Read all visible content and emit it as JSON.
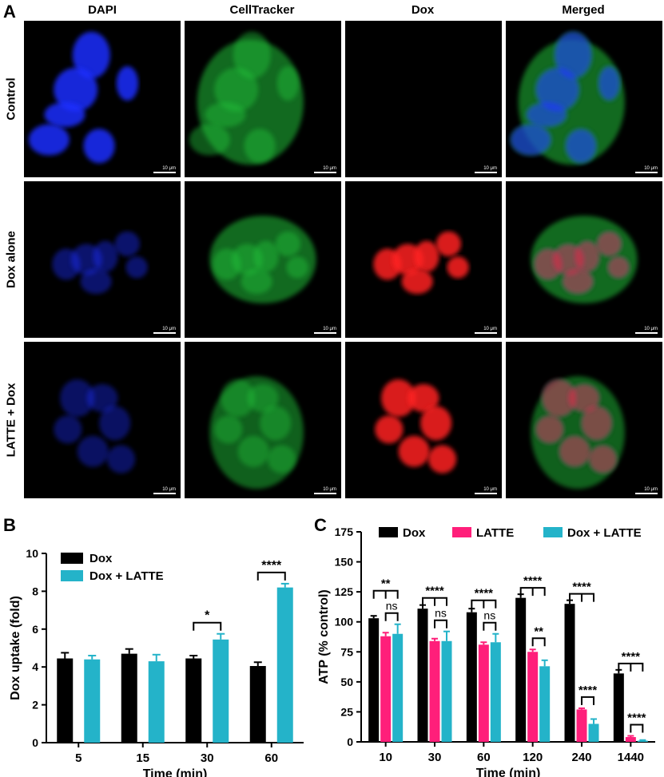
{
  "figure": {
    "panel_a": "A",
    "panel_b": "B",
    "panel_c": "C",
    "micrograph_columns": [
      "DAPI",
      "CellTracker",
      "Dox",
      "Merged"
    ],
    "micrograph_rows": [
      "Control",
      "Dox alone",
      "LATTE + Dox"
    ],
    "scale_bar_label": "10 μm"
  },
  "colors": {
    "dox": "#000000",
    "latte": "#ff1f7a",
    "dox_latte": "#24b3c9",
    "dapi": "#1a2fff",
    "celltracker": "#22c23a",
    "dox_fluor": "#ff2020"
  },
  "chart_data": [
    {
      "type": "bar",
      "panel": "B",
      "xlabel": "Time (min)",
      "ylabel": "Dox uptake (fold)",
      "categories": [
        "5",
        "15",
        "30",
        "60"
      ],
      "ylim": [
        0,
        10
      ],
      "yticks": [
        0,
        2,
        4,
        6,
        8,
        10
      ],
      "legend_position": "top-left",
      "series": [
        {
          "name": "Dox",
          "values": [
            4.45,
            4.7,
            4.45,
            4.05
          ],
          "errors": [
            0.3,
            0.25,
            0.15,
            0.2
          ]
        },
        {
          "name": "Dox + LATTE",
          "values": [
            4.4,
            4.3,
            5.45,
            8.2
          ],
          "errors": [
            0.2,
            0.35,
            0.3,
            0.2
          ]
        }
      ],
      "significance": [
        {
          "category": "30",
          "label": "*"
        },
        {
          "category": "60",
          "label": "****"
        }
      ]
    },
    {
      "type": "bar",
      "panel": "C",
      "xlabel": "Time (min)",
      "ylabel": "ATP (% control)",
      "categories": [
        "10",
        "30",
        "60",
        "120",
        "240",
        "1440"
      ],
      "ylim": [
        0,
        175
      ],
      "yticks": [
        0,
        25,
        50,
        75,
        100,
        125,
        150,
        175
      ],
      "legend_position": "top",
      "series": [
        {
          "name": "Dox",
          "values": [
            103,
            111,
            108,
            120,
            115,
            57
          ],
          "errors": [
            2,
            3,
            3,
            3,
            3,
            3
          ]
        },
        {
          "name": "LATTE",
          "values": [
            88,
            84,
            81,
            75,
            27,
            4
          ],
          "errors": [
            3,
            2,
            2,
            2,
            1,
            1
          ]
        },
        {
          "name": "Dox + LATTE",
          "values": [
            90,
            84,
            83,
            63,
            15,
            1
          ],
          "errors": [
            8,
            8,
            7,
            5,
            4,
            0.5
          ]
        }
      ],
      "significance": [
        {
          "category": "10",
          "top": "**",
          "inner": "ns"
        },
        {
          "category": "30",
          "top": "****",
          "inner": "ns"
        },
        {
          "category": "60",
          "top": "****",
          "inner": "ns"
        },
        {
          "category": "120",
          "top": "****",
          "inner": "**"
        },
        {
          "category": "240",
          "top": "****",
          "inner": "****"
        },
        {
          "category": "1440",
          "top": "****",
          "inner": "****"
        }
      ]
    }
  ]
}
